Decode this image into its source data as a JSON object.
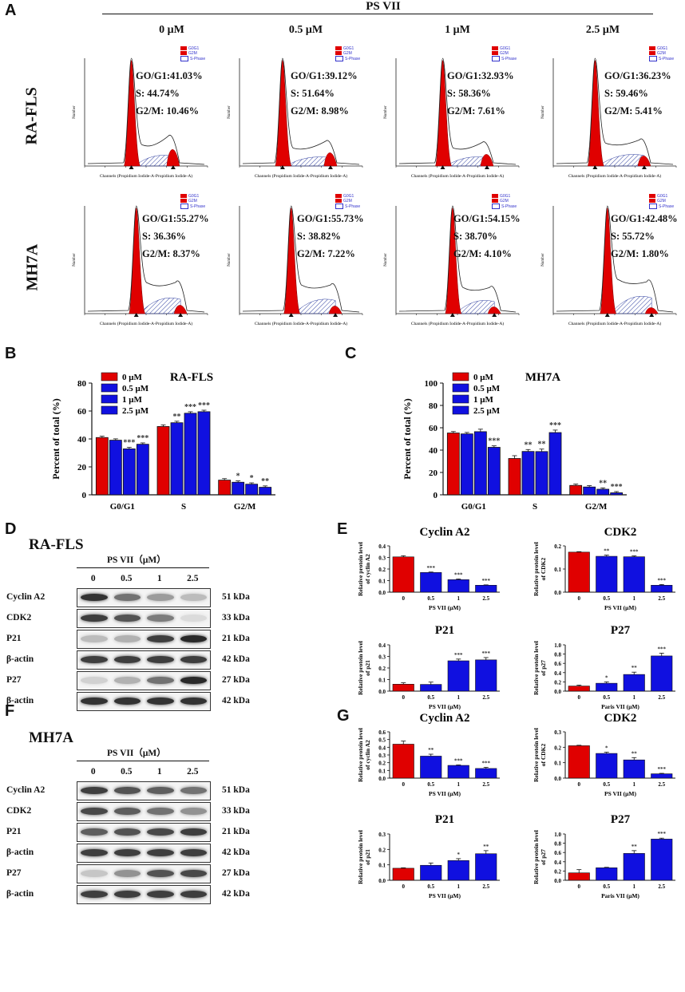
{
  "panel_labels": {
    "A": "A",
    "B": "B",
    "C": "C",
    "D": "D",
    "E": "E",
    "F": "F",
    "G": "G"
  },
  "flow": {
    "title": "PS VII",
    "doses": [
      "0 μM",
      "0.5 μM",
      "1 μM",
      "2.5 μM"
    ],
    "rows": [
      {
        "label": "RA-FLS",
        "cells": [
          {
            "g0g1": "GO/G1:41.03%",
            "s": "S: 44.74%",
            "g2m": "G2/M: 10.46%"
          },
          {
            "g0g1": "GO/G1:39.12%",
            "s": "S: 51.64%",
            "g2m": "G2/M: 8.98%"
          },
          {
            "g0g1": "GO/G1:32.93%",
            "s": "S: 58.36%",
            "g2m": "G2/M: 7.61%"
          },
          {
            "g0g1": "GO/G1:36.23%",
            "s": "S: 59.46%",
            "g2m": "G2/M: 5.41%"
          }
        ]
      },
      {
        "label": "MH7A",
        "cells": [
          {
            "g0g1": "GO/G1:55.27%",
            "s": "S: 36.36%",
            "g2m": "G2/M: 8.37%"
          },
          {
            "g0g1": "GO/G1:55.73%",
            "s": "S: 38.82%",
            "g2m": "G2/M: 7.22%"
          },
          {
            "g0g1": "GO/G1:54.15%",
            "s": "S: 38.70%",
            "g2m": "G2/M: 4.10%"
          },
          {
            "g0g1": "GO/G1:42.48%",
            "s": "S: 55.72%",
            "g2m": "G2/M: 1.80%"
          }
        ]
      }
    ],
    "legend": [
      "G0G1",
      "G2M",
      "S-Phase"
    ],
    "xaxis_label": "Channels (Propidium Iodide-A-Propidium Iodide-A)",
    "yaxis_label": "Number",
    "colors": {
      "g1": "#e00000",
      "s_hatch": "#3040a0",
      "outline": "#222222"
    }
  },
  "chart_data": [
    {
      "id": "B",
      "type": "bar",
      "title": "RA-FLS",
      "ylabel": "Percent of total (%)",
      "xlabel": "",
      "categories": [
        "G0/G1",
        "S",
        "G2/M"
      ],
      "ylim": [
        0,
        80
      ],
      "yticks": [
        0,
        20,
        40,
        60,
        80
      ],
      "series": [
        {
          "name": "0 μM",
          "values": [
            41.0,
            48.9,
            10.5
          ],
          "errors": [
            0.4,
            0.6,
            0.5
          ],
          "sig": [
            "",
            "",
            ""
          ]
        },
        {
          "name": "0.5 μM",
          "values": [
            39.1,
            51.6,
            9.0
          ],
          "errors": [
            0.4,
            0.5,
            0.4
          ],
          "sig": [
            "",
            "**",
            "*"
          ]
        },
        {
          "name": "1 μM",
          "values": [
            32.9,
            58.4,
            7.6
          ],
          "errors": [
            0.5,
            0.5,
            0.4
          ],
          "sig": [
            "***",
            "***",
            "*"
          ]
        },
        {
          "name": "2.5 μM",
          "values": [
            36.2,
            59.5,
            5.4
          ],
          "errors": [
            0.4,
            0.5,
            0.4
          ],
          "sig": [
            "***",
            "***",
            "**"
          ]
        }
      ],
      "colors": [
        "#e00000",
        "#1010e0",
        "#1010e0",
        "#1010e0"
      ]
    },
    {
      "id": "C",
      "type": "bar",
      "title": "MH7A",
      "ylabel": "Percent of total (%)",
      "xlabel": "",
      "categories": [
        "G0/G1",
        "S",
        "G2/M"
      ],
      "ylim": [
        0,
        100
      ],
      "yticks": [
        0,
        20,
        40,
        60,
        80,
        100
      ],
      "series": [
        {
          "name": "0 μM",
          "values": [
            55.3,
            32.5,
            8.4
          ],
          "errors": [
            0.6,
            1.8,
            0.5
          ],
          "sig": [
            "",
            "",
            ""
          ]
        },
        {
          "name": "0.5 μM",
          "values": [
            54.5,
            38.8,
            7.0
          ],
          "errors": [
            0.6,
            1.0,
            0.5
          ],
          "sig": [
            "",
            "**",
            ""
          ]
        },
        {
          "name": "1 μM",
          "values": [
            56.5,
            38.7,
            5.0
          ],
          "errors": [
            1.5,
            1.5,
            0.5
          ],
          "sig": [
            "",
            "**",
            "**"
          ]
        },
        {
          "name": "2.5 μM",
          "values": [
            42.5,
            55.7,
            1.8
          ],
          "errors": [
            0.6,
            1.5,
            0.4
          ],
          "sig": [
            "***",
            "***",
            "***"
          ]
        }
      ],
      "colors": [
        "#e00000",
        "#1010e0",
        "#1010e0",
        "#1010e0"
      ]
    },
    {
      "id": "E-cyclinA2",
      "type": "bar",
      "title": "Cyclin A2",
      "ylabel": "Relative protein level of cyclin A2",
      "xlabel": "PS VII (μM)",
      "categories": [
        "0",
        "0.5",
        "1",
        "2.5"
      ],
      "ylim": [
        0,
        0.4
      ],
      "yticks": [
        "0.0",
        "0.1",
        "0.2",
        "0.3",
        "0.4"
      ],
      "values": [
        0.305,
        0.17,
        0.108,
        0.06
      ],
      "errors": [
        0.01,
        0.004,
        0.006,
        0.003
      ],
      "sig": [
        "",
        "***",
        "***",
        "***"
      ]
    },
    {
      "id": "E-CDK2",
      "type": "bar",
      "title": "CDK2",
      "ylabel": "Relative protein level of CDK2",
      "xlabel": "PS VII (μM)",
      "categories": [
        "0",
        "0.5",
        "1",
        "2.5"
      ],
      "ylim": [
        0,
        0.2
      ],
      "yticks": [
        "0.0",
        "0.1",
        "0.2"
      ],
      "values": [
        0.173,
        0.155,
        0.153,
        0.03
      ],
      "errors": [
        0.002,
        0.005,
        0.004,
        0.003
      ],
      "sig": [
        "",
        "**",
        "***",
        "***"
      ]
    },
    {
      "id": "E-P21",
      "type": "bar",
      "title": "P21",
      "ylabel": "Relative protein level of p21",
      "xlabel": "PS VII (μM)",
      "categories": [
        "0",
        "0.5",
        "1",
        "2.5"
      ],
      "ylim": [
        0,
        0.4
      ],
      "yticks": [
        "0.0",
        "0.1",
        "0.2",
        "0.3",
        "0.4"
      ],
      "values": [
        0.06,
        0.058,
        0.262,
        0.27
      ],
      "errors": [
        0.012,
        0.02,
        0.015,
        0.02
      ],
      "sig": [
        "",
        "",
        "***",
        "***"
      ]
    },
    {
      "id": "E-P27",
      "type": "bar",
      "title": "P27",
      "ylabel": "Relative protein level of p27",
      "xlabel": "Paris VII (μM)",
      "categories": [
        "0",
        "0.5",
        "1",
        "2.5"
      ],
      "ylim": [
        0,
        1.0
      ],
      "yticks": [
        "0.0",
        "0.2",
        "0.4",
        "0.6",
        "0.8",
        "1.0"
      ],
      "values": [
        0.11,
        0.17,
        0.36,
        0.76
      ],
      "errors": [
        0.02,
        0.03,
        0.05,
        0.06
      ],
      "sig": [
        "",
        "*",
        "**",
        "***"
      ]
    },
    {
      "id": "G-cyclinA2",
      "type": "bar",
      "title": "Cyclin A2",
      "ylabel": "Relative protein level of cyclin A2",
      "xlabel": "PS VII (μM)",
      "categories": [
        "0",
        "0.5",
        "1",
        "2.5"
      ],
      "ylim": [
        0,
        0.6
      ],
      "yticks": [
        "0.0",
        "0.1",
        "0.2",
        "0.3",
        "0.4",
        "0.5",
        "0.6"
      ],
      "values": [
        0.44,
        0.285,
        0.165,
        0.125
      ],
      "errors": [
        0.04,
        0.025,
        0.006,
        0.015
      ],
      "sig": [
        "",
        "**",
        "***",
        "***"
      ]
    },
    {
      "id": "G-CDK2",
      "type": "bar",
      "title": "CDK2",
      "ylabel": "Relative protein level of CDK2",
      "xlabel": "PS VII (μM)",
      "categories": [
        "0",
        "0.5",
        "1",
        "2.5"
      ],
      "ylim": [
        0,
        0.3
      ],
      "yticks": [
        "0.0",
        "0.1",
        "0.2",
        "0.3"
      ],
      "values": [
        0.21,
        0.16,
        0.118,
        0.028
      ],
      "errors": [
        0.003,
        0.008,
        0.015,
        0.003
      ],
      "sig": [
        "",
        "*",
        "**",
        "***"
      ]
    },
    {
      "id": "G-P21",
      "type": "bar",
      "title": "P21",
      "ylabel": "Relative protein level of p21",
      "xlabel": "PS VII (μM)",
      "categories": [
        "0",
        "0.5",
        "1",
        "2.5"
      ],
      "ylim": [
        0,
        0.3
      ],
      "yticks": [
        "0.0",
        "0.1",
        "0.2",
        "0.3"
      ],
      "values": [
        0.078,
        0.097,
        0.128,
        0.172
      ],
      "errors": [
        0.003,
        0.015,
        0.012,
        0.02
      ],
      "sig": [
        "",
        "",
        "*",
        "**"
      ]
    },
    {
      "id": "G-P27",
      "type": "bar",
      "title": "P27",
      "ylabel": "Relative protein level of p27",
      "xlabel": "Paris VII (μM)",
      "categories": [
        "0",
        "0.5",
        "1",
        "2.5"
      ],
      "ylim": [
        0,
        1.0
      ],
      "yticks": [
        "0.0",
        "0.2",
        "0.4",
        "0.6",
        "0.8",
        "1.0"
      ],
      "values": [
        0.16,
        0.27,
        0.58,
        0.89
      ],
      "errors": [
        0.07,
        0.01,
        0.06,
        0.02
      ],
      "sig": [
        "",
        "",
        "**",
        "***"
      ]
    }
  ],
  "western": {
    "D": {
      "cell": "RA-FLS",
      "treatment": "PS VII（μM）",
      "lanes": [
        "0",
        "0.5",
        "1",
        "2.5"
      ],
      "rows": [
        {
          "protein": "Cyclin A2",
          "kda": "51 kDa",
          "intensity": [
            0.9,
            0.6,
            0.4,
            0.25
          ]
        },
        {
          "protein": "CDK2",
          "kda": "33 kDa",
          "intensity": [
            0.85,
            0.75,
            0.55,
            0.1
          ]
        },
        {
          "protein": "P21",
          "kda": "21 kDa",
          "intensity": [
            0.25,
            0.3,
            0.85,
            0.95
          ]
        },
        {
          "protein": "β-actin",
          "kda": "42 kDa",
          "intensity": [
            0.85,
            0.85,
            0.85,
            0.85
          ]
        },
        {
          "protein": "P27",
          "kda": "27 kDa",
          "intensity": [
            0.15,
            0.3,
            0.6,
            0.95
          ]
        },
        {
          "protein": "β-actin",
          "kda": "42 kDa",
          "intensity": [
            0.9,
            0.9,
            0.9,
            0.9
          ]
        }
      ]
    },
    "F": {
      "cell": "MH7A",
      "treatment": "PS VII（μM）",
      "lanes": [
        "0",
        "0.5",
        "1",
        "2.5"
      ],
      "rows": [
        {
          "protein": "Cyclin A2",
          "kda": "51 kDa",
          "intensity": [
            0.85,
            0.75,
            0.7,
            0.6
          ]
        },
        {
          "protein": "CDK2",
          "kda": "33 kDa",
          "intensity": [
            0.8,
            0.7,
            0.6,
            0.45
          ]
        },
        {
          "protein": "P21",
          "kda": "21 kDa",
          "intensity": [
            0.7,
            0.75,
            0.8,
            0.85
          ]
        },
        {
          "protein": "β-actin",
          "kda": "42 kDa",
          "intensity": [
            0.85,
            0.85,
            0.85,
            0.85
          ]
        },
        {
          "protein": "P27",
          "kda": "27 kDa",
          "intensity": [
            0.2,
            0.45,
            0.75,
            0.8
          ]
        },
        {
          "protein": "β-actin",
          "kda": "42 kDa",
          "intensity": [
            0.85,
            0.85,
            0.85,
            0.85
          ]
        }
      ]
    }
  }
}
